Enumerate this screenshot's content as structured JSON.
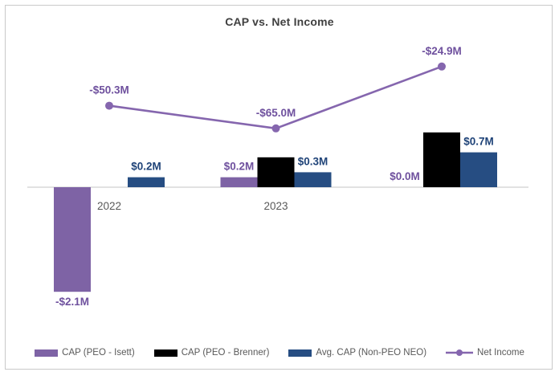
{
  "chart_data": {
    "type": "combo (bar + line)",
    "title": "CAP vs. Net Income",
    "categories": [
      "2022",
      "2023",
      ""
    ],
    "bar_series": [
      {
        "name": "CAP (PEO - Isett)",
        "color": "#7E63A5",
        "label_color": "#6F519E",
        "values": [
          -2.1,
          0.2,
          0.0
        ],
        "labels": [
          "-$2.1M",
          "$0.2M",
          "$0.0M"
        ]
      },
      {
        "name": "CAP (PEO - Brenner)",
        "color": "#000000",
        "label_color": "#000000",
        "values": [
          0,
          0.6,
          1.1
        ],
        "labels": [
          null,
          null,
          null
        ],
        "note": "bar heights estimated; value labels not visible in image"
      },
      {
        "name": "Avg. CAP (Non-PEO NEO)",
        "color": "#264D82",
        "label_color": "#1F4378",
        "values": [
          0.2,
          0.3,
          0.7
        ],
        "labels": [
          "$0.2M",
          "$0.3M",
          "$0.7M"
        ]
      }
    ],
    "line_series": {
      "name": "Net Income",
      "color": "#8566AE",
      "label_color": "#6F519E",
      "values": [
        -50.3,
        -65.0,
        -24.9
      ],
      "labels": [
        "-$50.3M",
        "-$65.0M",
        "-$24.9M"
      ]
    },
    "axis": {
      "zero_line_color": "#D9D9D9",
      "category_label_color": "#595959",
      "bar_ylim": [
        -2.5,
        1.5
      ],
      "line_ylim": [
        -80,
        0
      ],
      "gridlines": false
    },
    "legend_position": "bottom",
    "units": "$M"
  }
}
